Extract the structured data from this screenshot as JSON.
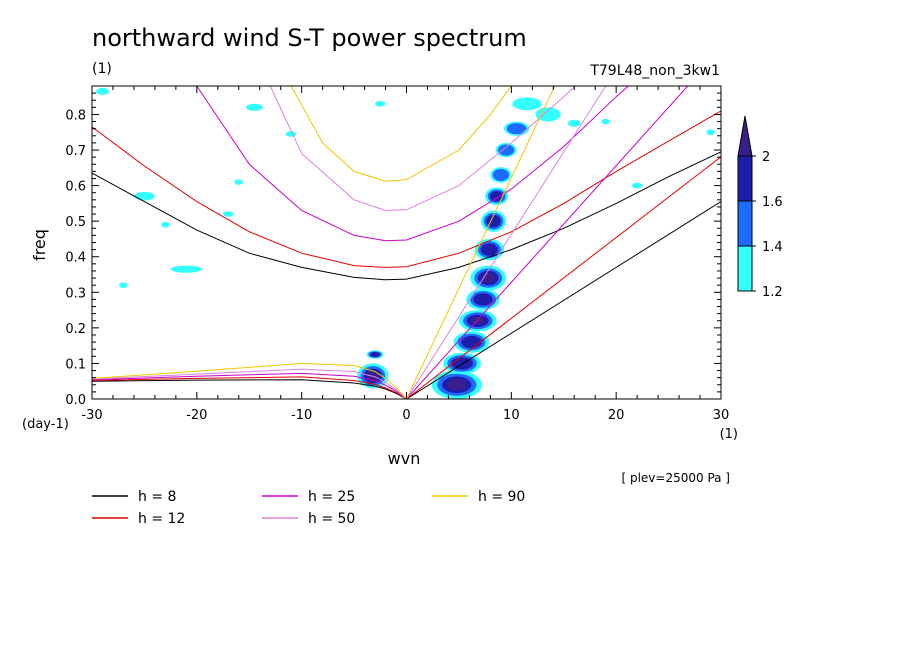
{
  "title": "northward wind S-T power spectrum",
  "title_unit": "(1)",
  "run_name": "T79L48_non_3kw1",
  "footnote": "[ plev=25000 Pa ]",
  "chart_data": {
    "type": "contour",
    "xlabel": "wvn",
    "xunit": "(1)",
    "ylabel": "freq",
    "yunit": "(day-1)",
    "xlim": [
      -30,
      30
    ],
    "ylim": [
      0,
      0.88
    ],
    "xticks": [
      "-30",
      "-20",
      "-10",
      "0",
      "10",
      "20",
      "30"
    ],
    "yticks": [
      "0.0",
      "0.1",
      "0.2",
      "0.3",
      "0.4",
      "0.5",
      "0.6",
      "0.7",
      "0.8"
    ],
    "colorbar": {
      "levels": [
        "1.2",
        "1.4",
        "1.6",
        "2"
      ],
      "colors": [
        "#33FFFF",
        "#1E6BFF",
        "#1E1EAA",
        "#3A1E8C"
      ]
    },
    "legend": [
      {
        "label": "h =  8",
        "color": "#000000"
      },
      {
        "label": "h = 12",
        "color": "#E00000"
      },
      {
        "label": "h = 25",
        "color": "#C800C8"
      },
      {
        "label": "h = 50",
        "color": "#DC82DC"
      },
      {
        "label": "h = 90",
        "color": "#F0C800"
      }
    ],
    "dispersion_curves": [
      {
        "h": 8,
        "color": "#000000",
        "eig_x": [
          -30,
          -25,
          -20,
          -15,
          -10,
          -5,
          -2,
          0,
          5,
          10,
          15,
          20,
          25,
          30
        ],
        "eig_y": [
          0.635,
          0.555,
          0.475,
          0.41,
          0.37,
          0.342,
          0.335,
          0.337,
          0.37,
          0.42,
          0.48,
          0.55,
          0.625,
          0.695
        ],
        "low_x": [
          -30,
          -20,
          -10,
          -5,
          -3,
          -2,
          -1,
          0
        ],
        "low_y": [
          0.05,
          0.053,
          0.054,
          0.045,
          0.036,
          0.028,
          0.016,
          0.0
        ],
        "kelvin_slope": 0.0185
      },
      {
        "h": 12,
        "color": "#E00000",
        "eig_x": [
          -30,
          -25,
          -20,
          -15,
          -10,
          -5,
          -2,
          0,
          5,
          10,
          15,
          20,
          25,
          30
        ],
        "eig_y": [
          0.765,
          0.655,
          0.555,
          0.47,
          0.41,
          0.375,
          0.37,
          0.372,
          0.41,
          0.47,
          0.55,
          0.64,
          0.725,
          0.81
        ],
        "low_x": [
          -30,
          -20,
          -10,
          -5,
          -3,
          -2,
          -1,
          0
        ],
        "low_y": [
          0.052,
          0.058,
          0.062,
          0.052,
          0.041,
          0.031,
          0.018,
          0.0
        ],
        "kelvin_slope": 0.0227
      },
      {
        "h": 25,
        "color": "#C800C8",
        "eig_x": [
          -20,
          -15,
          -10,
          -5,
          -2,
          0,
          5,
          10,
          15,
          20,
          25
        ],
        "eig_y": [
          0.88,
          0.66,
          0.53,
          0.46,
          0.445,
          0.447,
          0.5,
          0.59,
          0.71,
          0.85,
          0.98
        ],
        "low_x": [
          -30,
          -20,
          -10,
          -5,
          -3,
          -2,
          -1,
          0
        ],
        "low_y": [
          0.054,
          0.064,
          0.072,
          0.064,
          0.051,
          0.039,
          0.022,
          0.0
        ],
        "kelvin_slope": 0.0328
      },
      {
        "h": 50,
        "color": "#DC82DC",
        "eig_x": [
          -13,
          -10,
          -5,
          -2,
          0,
          5,
          10,
          15,
          19
        ],
        "eig_y": [
          0.88,
          0.69,
          0.56,
          0.53,
          0.532,
          0.6,
          0.72,
          0.85,
          0.96
        ],
        "low_x": [
          -30,
          -20,
          -10,
          -5,
          -3,
          -2,
          -1,
          0
        ],
        "low_y": [
          0.056,
          0.07,
          0.084,
          0.077,
          0.062,
          0.047,
          0.027,
          0.0
        ],
        "kelvin_slope": 0.0463
      },
      {
        "h": 90,
        "color": "#F0C800",
        "eig_x": [
          -11,
          -8,
          -5,
          -2,
          0,
          5,
          8,
          10,
          12
        ],
        "eig_y": [
          0.88,
          0.72,
          0.64,
          0.612,
          0.617,
          0.7,
          0.8,
          0.88,
          0.96
        ],
        "low_x": [
          -30,
          -20,
          -10,
          -5,
          -3,
          -2,
          -1,
          0
        ],
        "low_y": [
          0.058,
          0.078,
          0.1,
          0.094,
          0.077,
          0.058,
          0.033,
          0.0
        ],
        "kelvin_slope": 0.0622
      }
    ],
    "power_blobs": [
      {
        "x": 4.8,
        "y": 0.04,
        "rx": 2.4,
        "ry": 0.04,
        "level": 4
      },
      {
        "x": 5.3,
        "y": 0.1,
        "rx": 1.8,
        "ry": 0.03,
        "level": 3
      },
      {
        "x": 6.2,
        "y": 0.16,
        "rx": 1.7,
        "ry": 0.03,
        "level": 3
      },
      {
        "x": 6.8,
        "y": 0.22,
        "rx": 1.8,
        "ry": 0.03,
        "level": 4
      },
      {
        "x": 7.3,
        "y": 0.28,
        "rx": 1.6,
        "ry": 0.03,
        "level": 3
      },
      {
        "x": 7.8,
        "y": 0.34,
        "rx": 1.7,
        "ry": 0.035,
        "level": 4
      },
      {
        "x": 7.9,
        "y": 0.42,
        "rx": 1.4,
        "ry": 0.03,
        "level": 3
      },
      {
        "x": 8.3,
        "y": 0.5,
        "rx": 1.2,
        "ry": 0.03,
        "level": 3
      },
      {
        "x": 8.6,
        "y": 0.57,
        "rx": 1.1,
        "ry": 0.025,
        "level": 3
      },
      {
        "x": 9.0,
        "y": 0.63,
        "rx": 1.0,
        "ry": 0.022,
        "level": 2
      },
      {
        "x": 9.5,
        "y": 0.7,
        "rx": 1.0,
        "ry": 0.02,
        "level": 2
      },
      {
        "x": 10.5,
        "y": 0.76,
        "rx": 1.2,
        "ry": 0.02,
        "level": 2
      },
      {
        "x": 11.5,
        "y": 0.83,
        "rx": 1.4,
        "ry": 0.018,
        "level": 1
      },
      {
        "x": 13.5,
        "y": 0.8,
        "rx": 1.2,
        "ry": 0.02,
        "level": 1
      },
      {
        "x": -3.2,
        "y": 0.065,
        "rx": 1.5,
        "ry": 0.035,
        "level": 4
      },
      {
        "x": -3.0,
        "y": 0.125,
        "rx": 0.8,
        "ry": 0.012,
        "level": 3
      },
      {
        "x": -25,
        "y": 0.57,
        "rx": 1.0,
        "ry": 0.012,
        "level": 1
      },
      {
        "x": -21,
        "y": 0.365,
        "rx": 1.5,
        "ry": 0.01,
        "level": 1
      },
      {
        "x": -29,
        "y": 0.865,
        "rx": 0.6,
        "ry": 0.01,
        "level": 1
      },
      {
        "x": -14.5,
        "y": 0.82,
        "rx": 0.8,
        "ry": 0.01,
        "level": 1
      },
      {
        "x": -17,
        "y": 0.52,
        "rx": 0.5,
        "ry": 0.008,
        "level": 1
      },
      {
        "x": -11,
        "y": 0.745,
        "rx": 0.5,
        "ry": 0.008,
        "level": 1
      },
      {
        "x": -16,
        "y": 0.61,
        "rx": 0.4,
        "ry": 0.008,
        "level": 1
      },
      {
        "x": -2.5,
        "y": 0.83,
        "rx": 0.5,
        "ry": 0.008,
        "level": 1
      },
      {
        "x": 16,
        "y": 0.775,
        "rx": 0.6,
        "ry": 0.01,
        "level": 1
      },
      {
        "x": 19,
        "y": 0.78,
        "rx": 0.4,
        "ry": 0.008,
        "level": 1
      },
      {
        "x": 22,
        "y": 0.6,
        "rx": 0.5,
        "ry": 0.008,
        "level": 1
      },
      {
        "x": 29,
        "y": 0.75,
        "rx": 0.4,
        "ry": 0.008,
        "level": 1
      },
      {
        "x": -23,
        "y": 0.49,
        "rx": 0.4,
        "ry": 0.008,
        "level": 1
      },
      {
        "x": -27,
        "y": 0.32,
        "rx": 0.4,
        "ry": 0.008,
        "level": 1
      }
    ]
  }
}
